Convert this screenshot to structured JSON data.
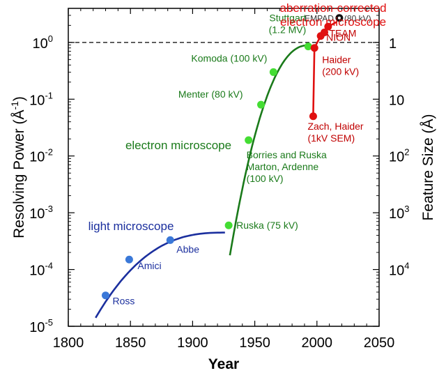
{
  "chart_data": {
    "type": "scatter",
    "xlabel": "Year",
    "ylabel": "Resolving Power (Å",
    "ylabel_sup": "-1",
    "ylabel_tail": ")",
    "y2label": "Feature Size (Å)",
    "xlim": [
      1800,
      2050
    ],
    "ylim_log10": [
      -5,
      0.6
    ],
    "yscale": "log",
    "x_ticks": [
      "1800",
      "1850",
      "1900",
      "1950",
      "2000",
      "2050"
    ],
    "y_ticks_base": "10",
    "y_ticks_exp": [
      "-5",
      "-4",
      "-3",
      "-2",
      "-1",
      "0"
    ],
    "y2_ticks": [
      {
        "base": "1",
        "exp": ""
      },
      {
        "base": "10",
        "exp": ""
      },
      {
        "base": "10",
        "exp": "2"
      },
      {
        "base": "10",
        "exp": "3"
      },
      {
        "base": "10",
        "exp": "4"
      }
    ],
    "reference_line": {
      "y": 1.0,
      "style": "dashed"
    },
    "series": [
      {
        "name": "light microscope",
        "color": "#1b2f9e",
        "marker_color": "#3a78d8",
        "points": [
          {
            "x": 1830,
            "y": 3.5e-05,
            "label": "Ross"
          },
          {
            "x": 1849,
            "y": 0.00015,
            "label": "Amici"
          },
          {
            "x": 1882,
            "y": 0.00033,
            "label": "Abbe"
          }
        ]
      },
      {
        "name": "electron microscope",
        "color": "#1a7a1a",
        "marker_color": "#44dd33",
        "points": [
          {
            "x": 1929,
            "y": 0.0006,
            "label": "Ruska (75 kV)"
          },
          {
            "x": 1945,
            "y": 0.019,
            "label": "Borries and Ruska\nMarton, Ardenne\n(100 kV)"
          },
          {
            "x": 1955,
            "y": 0.08,
            "label": "Menter (80 kV)"
          },
          {
            "x": 1965,
            "y": 0.3,
            "label": "Komoda (100 kV)"
          },
          {
            "x": 1993,
            "y": 0.85,
            "label": "Stuttgart\n(1.2 MV)"
          }
        ]
      },
      {
        "name": "aberration-corrected\nelectron microscope",
        "color": "#e01010",
        "marker_color": "#e01010",
        "points": [
          {
            "x": 1997,
            "y": 0.05,
            "label": "Zach, Haider\n(1kV SEM)"
          },
          {
            "x": 1998,
            "y": 0.8,
            "label": "Haider\n(200 kV)"
          },
          {
            "x": 2003,
            "y": 1.3,
            "label": "NION"
          },
          {
            "x": 2006,
            "y": 1.5,
            "label": "TEAM"
          },
          {
            "x": 2009,
            "y": 1.9,
            "label": ""
          },
          {
            "x": 2018,
            "y": 2.7,
            "label": "EMPAD (80 kV)",
            "marker_color": "#111111"
          }
        ]
      }
    ]
  }
}
